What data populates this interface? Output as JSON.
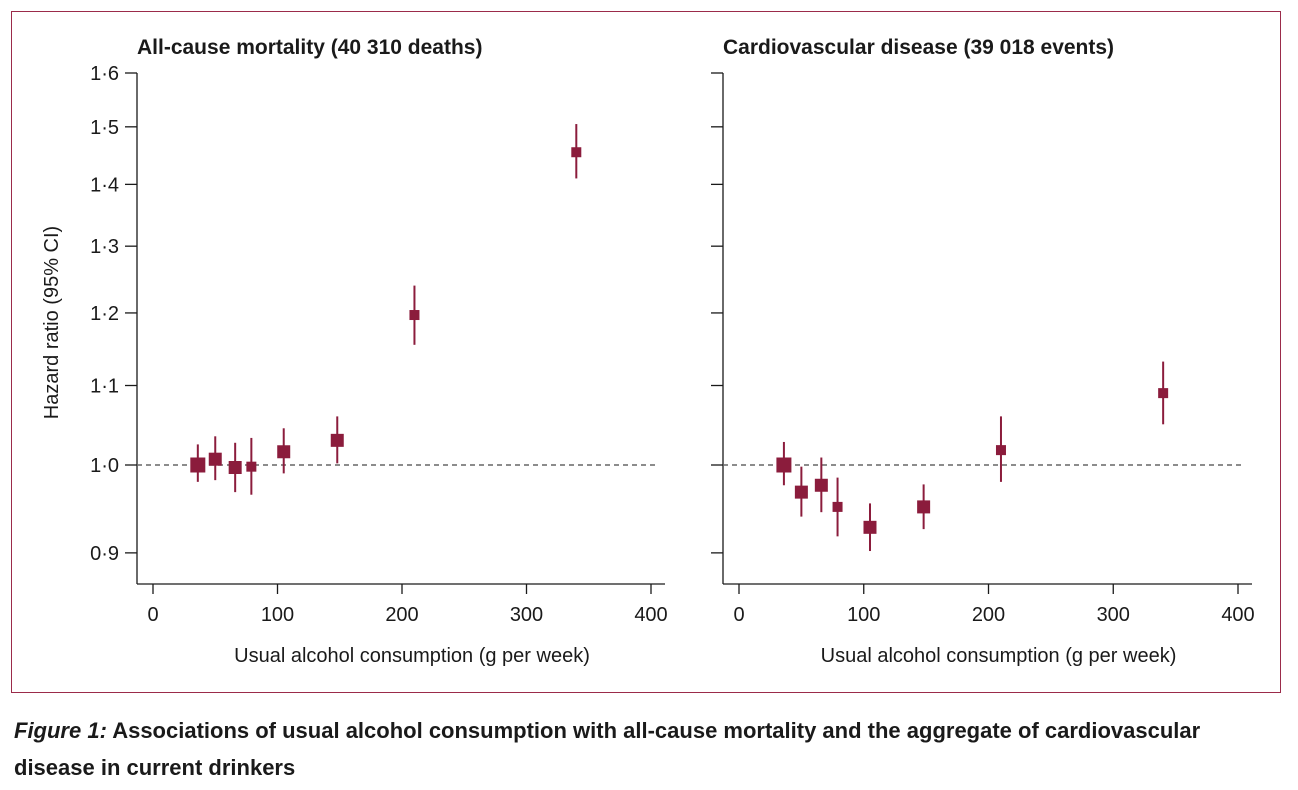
{
  "caption": {
    "lead": "Figure 1:",
    "text": " Associations of usual alcohol consumption with all-cause mortality and the aggregate of cardiovascular disease in current drinkers"
  },
  "colors": {
    "marker": "#8b1c3c",
    "frame": "#9b2b4a",
    "reference": "#666666"
  },
  "chart_data": [
    {
      "type": "scatter",
      "title": "All-cause mortality (40 310 deaths)",
      "xlabel": "Usual alcohol consumption (g per week)",
      "ylabel": "Hazard ratio (95% CI)",
      "xlim": [
        0,
        400
      ],
      "ylim": [
        0.88,
        1.6
      ],
      "yscale": "log",
      "x_ticks": [
        "0",
        "100",
        "200",
        "300",
        "400"
      ],
      "x_tick_values": [
        0,
        100,
        200,
        300,
        400
      ],
      "y_ticks": [
        "0·9",
        "1·0",
        "1·1",
        "1·2",
        "1·3",
        "1·4",
        "1·5",
        "1·6"
      ],
      "y_tick_values": [
        0.9,
        1.0,
        1.1,
        1.2,
        1.3,
        1.4,
        1.5,
        1.6
      ],
      "reference_line": 1.0,
      "points": [
        {
          "x": 36,
          "hr": 1.0,
          "lower": 0.98,
          "upper": 1.025,
          "weight": "large"
        },
        {
          "x": 50,
          "hr": 1.007,
          "lower": 0.982,
          "upper": 1.035,
          "weight": "medium"
        },
        {
          "x": 66,
          "hr": 0.997,
          "lower": 0.968,
          "upper": 1.027,
          "weight": "medium"
        },
        {
          "x": 79,
          "hr": 0.998,
          "lower": 0.965,
          "upper": 1.033,
          "weight": "small"
        },
        {
          "x": 105,
          "hr": 1.016,
          "lower": 0.99,
          "upper": 1.045,
          "weight": "medium"
        },
        {
          "x": 148,
          "hr": 1.03,
          "lower": 1.002,
          "upper": 1.06,
          "weight": "medium"
        },
        {
          "x": 210,
          "hr": 1.197,
          "lower": 1.155,
          "upper": 1.24,
          "weight": "small"
        },
        {
          "x": 340,
          "hr": 1.455,
          "lower": 1.41,
          "upper": 1.505,
          "weight": "small"
        }
      ]
    },
    {
      "type": "scatter",
      "title": "Cardiovascular disease (39 018 events)",
      "xlabel": "Usual alcohol consumption (g per week)",
      "ylabel": "",
      "xlim": [
        0,
        400
      ],
      "ylim": [
        0.88,
        1.6
      ],
      "yscale": "log",
      "x_ticks": [
        "0",
        "100",
        "200",
        "300",
        "400"
      ],
      "x_tick_values": [
        0,
        100,
        200,
        300,
        400
      ],
      "y_tick_values": [
        0.9,
        1.0,
        1.1,
        1.2,
        1.3,
        1.4,
        1.5,
        1.6
      ],
      "reference_line": 1.0,
      "points": [
        {
          "x": 36,
          "hr": 1.0,
          "lower": 0.976,
          "upper": 1.028,
          "weight": "large"
        },
        {
          "x": 50,
          "hr": 0.968,
          "lower": 0.94,
          "upper": 0.998,
          "weight": "medium"
        },
        {
          "x": 66,
          "hr": 0.976,
          "lower": 0.945,
          "upper": 1.009,
          "weight": "medium"
        },
        {
          "x": 79,
          "hr": 0.951,
          "lower": 0.918,
          "upper": 0.985,
          "weight": "small"
        },
        {
          "x": 105,
          "hr": 0.928,
          "lower": 0.902,
          "upper": 0.955,
          "weight": "medium"
        },
        {
          "x": 148,
          "hr": 0.951,
          "lower": 0.926,
          "upper": 0.977,
          "weight": "medium"
        },
        {
          "x": 210,
          "hr": 1.018,
          "lower": 0.98,
          "upper": 1.06,
          "weight": "small"
        },
        {
          "x": 340,
          "hr": 1.09,
          "lower": 1.05,
          "upper": 1.132,
          "weight": "small"
        }
      ]
    }
  ]
}
